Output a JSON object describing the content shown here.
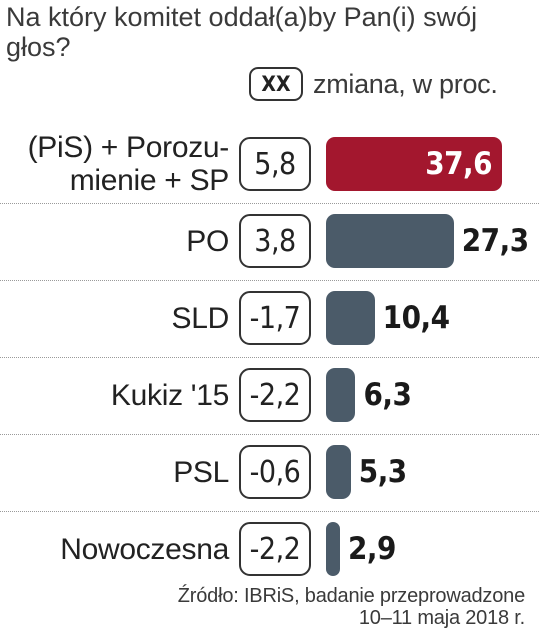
{
  "title": "Na który komitet oddał(a)by Pan(i) swój głos?",
  "legend": {
    "box_label": "XX",
    "text": "zmiana, w proc."
  },
  "colors": {
    "highlight": "#a3172e",
    "bar": "#4b5b69"
  },
  "chart_data": {
    "type": "bar",
    "orientation": "horizontal",
    "title": "Na który komitet oddał(a)by Pan(i) swój głos?",
    "categories": [
      [
        "(PiS) + Porozu-",
        "mienie + SP"
      ],
      [
        "PO"
      ],
      [
        "SLD"
      ],
      [
        "Kukiz '15"
      ],
      [
        "PSL"
      ],
      [
        "Nowoczesna"
      ]
    ],
    "values": [
      37.6,
      27.3,
      10.4,
      6.3,
      5.3,
      2.9
    ],
    "value_labels": [
      "37,6",
      "27,3",
      "10,4",
      "6,3",
      "5,3",
      "2,9"
    ],
    "changes": [
      "5,8",
      "3,8",
      "-1,7",
      "-2,2",
      "-0,6",
      "-2,2"
    ],
    "highlight_index": 0,
    "xlim": [
      0,
      37.6
    ],
    "grid": false,
    "unit": "%"
  },
  "source": [
    "Źródło: IBRiS, badanie przeprowadzone",
    "10–11 maja 2018 r."
  ]
}
